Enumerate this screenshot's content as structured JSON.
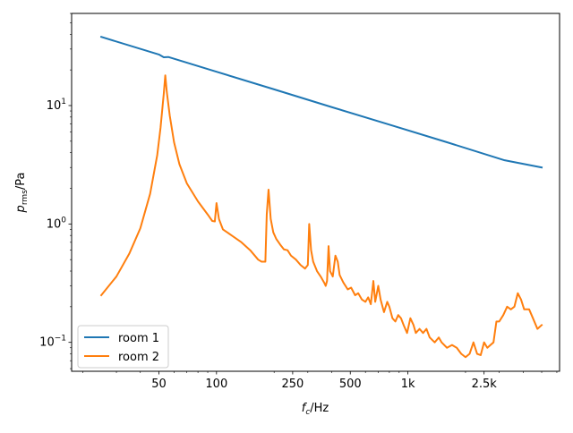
{
  "chart_data": {
    "type": "line",
    "xscale": "log",
    "yscale": "log",
    "xlabel": "f_c/Hz",
    "ylabel": "p_rms/Pa",
    "xlim": [
      17.5,
      6200
    ],
    "ylim": [
      0.057,
      60
    ],
    "x_ticks": [
      {
        "value": 50,
        "label": "50"
      },
      {
        "value": 100,
        "label": "100"
      },
      {
        "value": 250,
        "label": "250"
      },
      {
        "value": 500,
        "label": "500"
      },
      {
        "value": 1000,
        "label": "1k"
      },
      {
        "value": 2500,
        "label": "2.5k"
      }
    ],
    "y_ticks": [
      {
        "value": 0.1,
        "base": "10",
        "exp": "−1"
      },
      {
        "value": 1,
        "base": "10",
        "exp": "0"
      },
      {
        "value": 10,
        "base": "10",
        "exp": "1"
      }
    ],
    "grid": false,
    "legend_position": "lower-left",
    "series": [
      {
        "name": "room 1",
        "color": "#1f77b4",
        "points": [
          [
            25,
            38
          ],
          [
            50,
            27
          ],
          [
            53,
            25.6
          ],
          [
            56,
            25.7
          ],
          [
            100,
            19.3
          ],
          [
            200,
            13.7
          ],
          [
            400,
            9.7
          ],
          [
            800,
            6.9
          ],
          [
            1600,
            4.9
          ],
          [
            3200,
            3.45
          ],
          [
            5000,
            3.0
          ]
        ]
      },
      {
        "name": "room 2",
        "color": "#ff7f0e",
        "points": [
          [
            25,
            0.25
          ],
          [
            30,
            0.36
          ],
          [
            35,
            0.56
          ],
          [
            40,
            0.92
          ],
          [
            45,
            1.8
          ],
          [
            49,
            3.8
          ],
          [
            51,
            6.5
          ],
          [
            53,
            12.5
          ],
          [
            54,
            18
          ],
          [
            55,
            13
          ],
          [
            57,
            8.2
          ],
          [
            60,
            4.9
          ],
          [
            64,
            3.2
          ],
          [
            70,
            2.2
          ],
          [
            80,
            1.55
          ],
          [
            90,
            1.2
          ],
          [
            95,
            1.06
          ],
          [
            98,
            1.05
          ],
          [
            100,
            1.5
          ],
          [
            103,
            1.1
          ],
          [
            108,
            0.9
          ],
          [
            120,
            0.8
          ],
          [
            135,
            0.7
          ],
          [
            150,
            0.6
          ],
          [
            165,
            0.5
          ],
          [
            172,
            0.48
          ],
          [
            180,
            0.48
          ],
          [
            183,
            1.2
          ],
          [
            187,
            1.95
          ],
          [
            192,
            1.1
          ],
          [
            198,
            0.85
          ],
          [
            205,
            0.75
          ],
          [
            215,
            0.67
          ],
          [
            225,
            0.61
          ],
          [
            235,
            0.6
          ],
          [
            245,
            0.54
          ],
          [
            260,
            0.5
          ],
          [
            275,
            0.45
          ],
          [
            290,
            0.42
          ],
          [
            300,
            0.45
          ],
          [
            305,
            1.0
          ],
          [
            312,
            0.6
          ],
          [
            320,
            0.48
          ],
          [
            335,
            0.4
          ],
          [
            350,
            0.36
          ],
          [
            365,
            0.32
          ],
          [
            372,
            0.3
          ],
          [
            378,
            0.33
          ],
          [
            385,
            0.65
          ],
          [
            392,
            0.4
          ],
          [
            405,
            0.36
          ],
          [
            418,
            0.54
          ],
          [
            430,
            0.48
          ],
          [
            440,
            0.37
          ],
          [
            460,
            0.32
          ],
          [
            485,
            0.28
          ],
          [
            505,
            0.29
          ],
          [
            530,
            0.25
          ],
          [
            550,
            0.26
          ],
          [
            575,
            0.23
          ],
          [
            600,
            0.22
          ],
          [
            620,
            0.24
          ],
          [
            640,
            0.21
          ],
          [
            660,
            0.33
          ],
          [
            675,
            0.22
          ],
          [
            700,
            0.3
          ],
          [
            720,
            0.23
          ],
          [
            750,
            0.18
          ],
          [
            780,
            0.22
          ],
          [
            800,
            0.2
          ],
          [
            830,
            0.16
          ],
          [
            860,
            0.15
          ],
          [
            890,
            0.17
          ],
          [
            920,
            0.16
          ],
          [
            950,
            0.14
          ],
          [
            990,
            0.12
          ],
          [
            1030,
            0.16
          ],
          [
            1070,
            0.14
          ],
          [
            1100,
            0.12
          ],
          [
            1150,
            0.13
          ],
          [
            1200,
            0.12
          ],
          [
            1250,
            0.13
          ],
          [
            1300,
            0.11
          ],
          [
            1380,
            0.1
          ],
          [
            1450,
            0.11
          ],
          [
            1500,
            0.1
          ],
          [
            1600,
            0.09
          ],
          [
            1700,
            0.095
          ],
          [
            1800,
            0.09
          ],
          [
            1900,
            0.08
          ],
          [
            2000,
            0.075
          ],
          [
            2100,
            0.08
          ],
          [
            2200,
            0.1
          ],
          [
            2300,
            0.08
          ],
          [
            2400,
            0.078
          ],
          [
            2500,
            0.1
          ],
          [
            2600,
            0.09
          ],
          [
            2700,
            0.095
          ],
          [
            2800,
            0.1
          ],
          [
            2900,
            0.15
          ],
          [
            3000,
            0.15
          ],
          [
            3150,
            0.17
          ],
          [
            3300,
            0.2
          ],
          [
            3450,
            0.19
          ],
          [
            3600,
            0.2
          ],
          [
            3750,
            0.26
          ],
          [
            3900,
            0.23
          ],
          [
            4050,
            0.19
          ],
          [
            4300,
            0.19
          ],
          [
            4500,
            0.16
          ],
          [
            4750,
            0.13
          ],
          [
            5000,
            0.14
          ]
        ]
      }
    ]
  }
}
